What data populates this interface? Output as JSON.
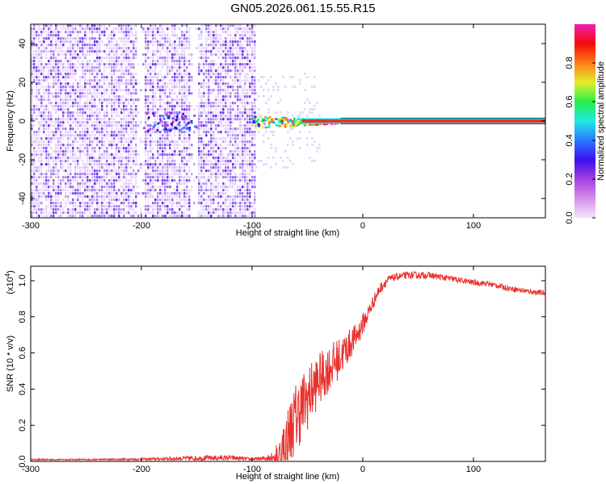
{
  "page": {
    "title": "GN05.2026.061.15.55.R15"
  },
  "colors": {
    "snr_line": "#e8322e",
    "tone_band": "#e8322e",
    "tone_edge": "#000000",
    "frame": "#000000",
    "noise_dark": "#5a14e6",
    "noise_mid": "#9a60f0",
    "noise_light": "#d9c6fa"
  },
  "colormap": [
    "#f2e6fb",
    "#d58ee8",
    "#a440e0",
    "#3c10f0",
    "#2a7bff",
    "#21e8e2",
    "#26f04a",
    "#e4ee2a",
    "#ff7a1a",
    "#f50a0a",
    "#f020b4"
  ],
  "chart_data": [
    {
      "type": "heatmap",
      "name": "spectrogram",
      "title": "GN05.2026.061.15.55.R15",
      "xlabel": "Height of straight line (km)",
      "ylabel": "Frequency (Hz)",
      "xlim": [
        -300,
        165
      ],
      "ylim": [
        -50,
        50
      ],
      "xticks": [
        -300,
        -200,
        -100,
        0,
        100
      ],
      "yticks": [
        -40,
        -20,
        0,
        20,
        40
      ],
      "colorbar": {
        "label": "Normalized spectral amplitude",
        "range": [
          0,
          1
        ],
        "ticks": [
          "0.0",
          "0.2",
          "0.4",
          "0.6",
          "0.8"
        ],
        "tick_values": [
          0,
          0.2,
          0.4,
          0.6,
          0.8
        ]
      },
      "noise_region_km": [
        -300,
        -97
      ],
      "gaps_km": [
        [
          -205,
          -198
        ],
        [
          -157,
          -149
        ]
      ],
      "tone": {
        "frequency_hz": 0,
        "start_km": -100,
        "strong_from_km": -55,
        "strength": 0.95
      }
    },
    {
      "type": "line",
      "name": "snr",
      "xlabel": "Height of straight line (km)",
      "ylabel": "SNR (10 * v/v)",
      "scale_label": "(x10",
      "scale_exp": "4",
      "scale_close": ")",
      "xlim": [
        -300,
        165
      ],
      "ylim": [
        0,
        1.08
      ],
      "xticks": [
        -300,
        -200,
        -100,
        0,
        100
      ],
      "yticks": [
        0.0,
        0.2,
        0.4,
        0.6,
        0.8,
        1.0
      ],
      "ytick_labels": [
        "0.0",
        "0.2",
        "0.4",
        "0.6",
        "0.8",
        "1.0"
      ],
      "series": [
        {
          "name": "SNR",
          "x": [
            -300,
            -250,
            -200,
            -150,
            -120,
            -100,
            -90,
            -80,
            -75,
            -70,
            -65,
            -60,
            -55,
            -50,
            -45,
            -40,
            -35,
            -30,
            -25,
            -20,
            -15,
            -10,
            -5,
            0,
            5,
            10,
            15,
            20,
            25,
            30,
            40,
            50,
            60,
            70,
            80,
            90,
            100,
            110,
            120,
            130,
            140,
            150,
            165
          ],
          "y": [
            0.01,
            0.01,
            0.012,
            0.018,
            0.02,
            0.012,
            0.015,
            0.03,
            0.05,
            0.1,
            0.18,
            0.25,
            0.3,
            0.35,
            0.4,
            0.45,
            0.48,
            0.52,
            0.55,
            0.58,
            0.62,
            0.66,
            0.7,
            0.76,
            0.82,
            0.89,
            0.95,
            0.99,
            1.01,
            1.02,
            1.03,
            1.03,
            1.03,
            1.02,
            1.01,
            1.0,
            0.99,
            0.985,
            0.975,
            0.96,
            0.95,
            0.94,
            0.93
          ],
          "noise_amplitude": [
            0.004,
            0.004,
            0.006,
            0.014,
            0.015,
            0.008,
            0.012,
            0.04,
            0.08,
            0.16,
            0.18,
            0.2,
            0.19,
            0.18,
            0.16,
            0.15,
            0.14,
            0.13,
            0.12,
            0.11,
            0.1,
            0.08,
            0.07,
            0.06,
            0.05,
            0.04,
            0.03,
            0.03,
            0.022,
            0.02,
            0.02,
            0.02,
            0.018,
            0.018,
            0.018,
            0.016,
            0.016,
            0.016,
            0.016,
            0.015,
            0.015,
            0.015,
            0.015
          ]
        }
      ]
    }
  ]
}
